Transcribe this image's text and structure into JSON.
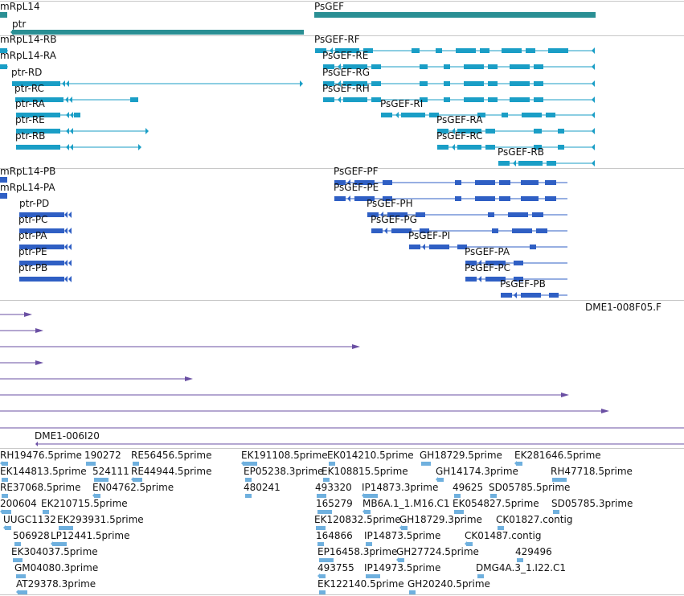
{
  "colors": {
    "gene": "#2a8f94",
    "rna": "#1a9ec6",
    "cds": "#2f5fc4",
    "est_pair": "#6a4fa3",
    "est": "#6fb0de",
    "separator": "#c8c8c8"
  },
  "tracks": {
    "gene": [
      "mRpL14",
      "ptr",
      "PsGEF"
    ],
    "rna": [
      "mRpL14-RB",
      "mRpL14-RA",
      "ptr-RD",
      "ptr-RC",
      "ptr-RA",
      "ptr-RE",
      "ptr-RB",
      "PsGEF-RF",
      "PsGEF-RE",
      "PsGEF-RG",
      "PsGEF-RH",
      "PsGEF-RI",
      "PsGEF-RA",
      "PsGEF-RC",
      "PsGEF-RB"
    ],
    "cds": [
      "mRpL14-PB",
      "mRpL14-PA",
      "ptr-PD",
      "ptr-PC",
      "ptr-PA",
      "ptr-PE",
      "ptr-PB",
      "PsGEF-PF",
      "PsGEF-PE",
      "PsGEF-PH",
      "PsGEF-PG",
      "PsGEF-PI",
      "PsGEF-PA",
      "PsGEF-PC",
      "PsGEF-PB"
    ],
    "est_pair": [
      "DME1-008F05.F",
      "DME1-006I20"
    ],
    "est": [
      "RH19476.5prime",
      "190272",
      "RE56456.5prime",
      "EK191108.5prime",
      "EK014210.5prime",
      "GH18729.5prime",
      "EK281646.5prime",
      "EK144813.5prime",
      "524111",
      "RE44944.5prime",
      "EP05238.3prime",
      "EK108815.5prime",
      "GH14174.3prime",
      "RH47718.5prime",
      "RE37068.5prime",
      "EN04762.5prime",
      "480241",
      "493320",
      "IP14873.3prime",
      "49625",
      "SD05785.5prime",
      "200604",
      "EK210715.5prime",
      "165279",
      "MB6A.1_1.M16.C1",
      "EK054827.5prime",
      "SD05785.3prime",
      "UUGC1132",
      "EK293931.5prime",
      "EK120832.5prime",
      "GH18729.3prime",
      "CK01827.contig",
      "506928",
      "LP12441.5prime",
      "164866",
      "IP14873.5prime",
      "CK01487.contig",
      "EK304037.5prime",
      "EP16458.3prime",
      "GH27724.5prime",
      "429496",
      "GM04080.3prime",
      "493755",
      "IP14973.5prime",
      "DMG4A.3_1.I22.C1",
      "AT29378.3prime",
      "EK122140.5prime",
      "GH20240.5prime"
    ]
  }
}
